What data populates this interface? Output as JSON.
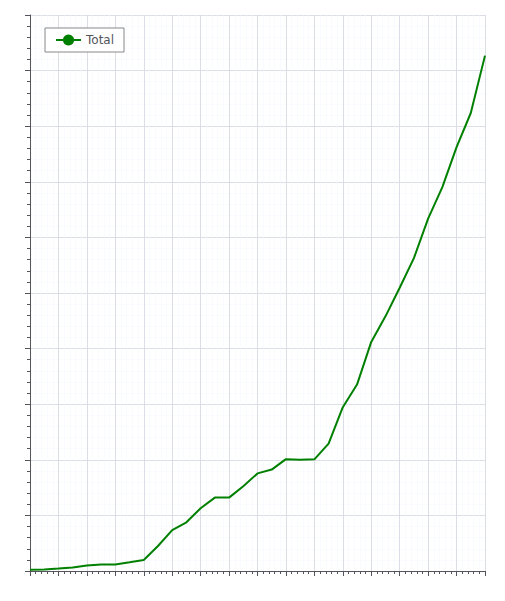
{
  "chart_data": {
    "type": "line",
    "x": [
      1850,
      1855,
      1860,
      1865,
      1870,
      1875,
      1880,
      1885,
      1890,
      1895,
      1900,
      1905,
      1910,
      1915,
      1920,
      1925,
      1930,
      1935,
      1940,
      1945,
      1950,
      1955,
      1960,
      1965,
      1970,
      1975,
      1980,
      1985,
      1990,
      1995,
      2000,
      2005,
      2010
    ],
    "series": [
      {
        "name": "Total",
        "color": "#008000",
        "values": [
          5886,
          7186,
          11206,
          15691,
          24785,
          29257,
          29317,
          39382,
          49782,
          112591,
          184124,
          218935,
          282114,
          330000,
          330000,
          381000,
          438852,
          456000,
          503000,
          500000,
          502000,
          573000,
          736629,
          838194,
          1030000,
          1145000,
          1273624,
          1406929,
          1584300,
          1726095,
          1906114,
          2059381,
          2317300
        ]
      }
    ],
    "xlim": [
      1850,
      2010
    ],
    "xticks": [
      1850,
      1860,
      1870,
      1880,
      1890,
      1900,
      1910,
      1920,
      1930,
      1940,
      1950,
      1960,
      1970,
      1980,
      1990,
      2000,
      2010
    ],
    "ylim": [
      0,
      2500000
    ],
    "yticks": [
      0,
      250000,
      500000,
      750000,
      1000000,
      1250000,
      1500000,
      1750000,
      2000000,
      2250000,
      2500000
    ],
    "grid": true,
    "legend": "upper left",
    "tick_labels": false
  }
}
